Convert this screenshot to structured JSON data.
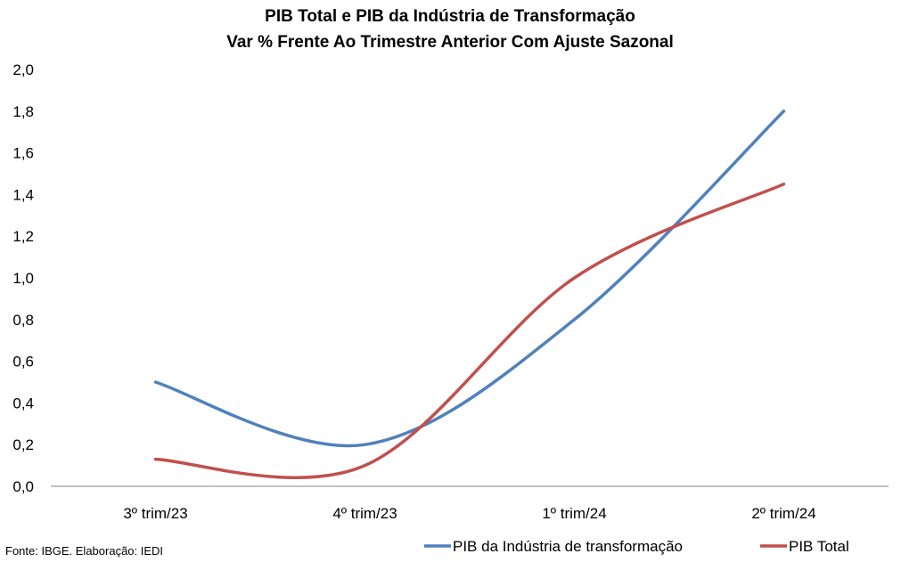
{
  "chart_data": {
    "type": "line",
    "title": "PIB Total e PIB da Indústria de Transformação",
    "subtitle": "Var % Frente Ao Trimestre Anterior Com Ajuste Sazonal",
    "xlabel": "",
    "ylabel": "",
    "categories": [
      "3º trim/23",
      "4º trim/23",
      "1º trim/24",
      "2º trim/24"
    ],
    "ylim": [
      0,
      2.0
    ],
    "yticks": [
      "0,0",
      "0,2",
      "0,4",
      "0,6",
      "0,8",
      "1,0",
      "1,2",
      "1,4",
      "1,6",
      "1,8",
      "2,0"
    ],
    "grid": false,
    "legend_position": "bottom-right",
    "series": [
      {
        "name": "PIB da Indústria de transformação",
        "color": "#4F81BD",
        "values": [
          0.5,
          0.2,
          0.8,
          1.8
        ]
      },
      {
        "name": "PIB Total",
        "color": "#C0504D",
        "values": [
          0.13,
          0.1,
          1.0,
          1.45
        ]
      }
    ],
    "source": "Fonte: IBGE. Elaboração: IEDI"
  }
}
